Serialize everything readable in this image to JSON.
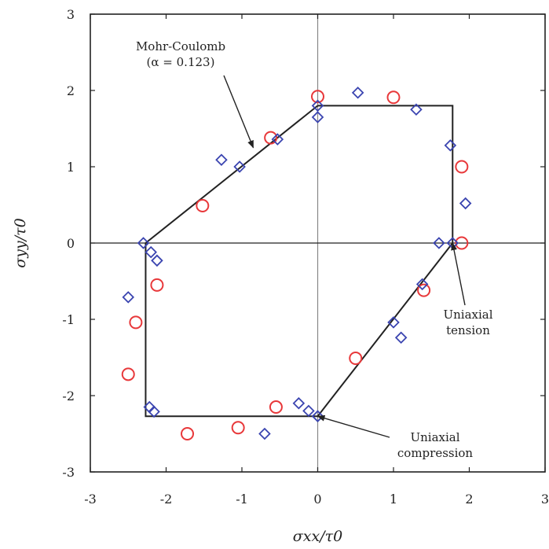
{
  "chart_data": {
    "type": "scatter",
    "title": "",
    "xlabel": "σxx/τ0",
    "ylabel": "σyy/τ0",
    "xlim": [
      -3,
      3
    ],
    "ylim": [
      -3,
      3
    ],
    "xticks": [
      -3,
      -2,
      -1,
      0,
      1,
      2,
      3
    ],
    "yticks": [
      -3,
      -2,
      -1,
      0,
      1,
      2,
      3
    ],
    "xtick_labels": [
      "-3",
      "-2",
      "-1",
      "0",
      "1",
      "2",
      "3"
    ],
    "ytick_labels": [
      "-3",
      "-2",
      "-1",
      "0",
      "1",
      "2",
      "3"
    ],
    "grid": false,
    "zero_lines": true,
    "series": [
      {
        "marker": "circle",
        "color": "#e8383a",
        "x": [
          0.0,
          1.0,
          1.9,
          1.9,
          -0.62,
          -1.52,
          -2.12,
          -2.4,
          -2.5,
          -1.72,
          -1.05,
          -0.55,
          0.5,
          1.4
        ],
        "y": [
          1.92,
          1.91,
          1.0,
          0.0,
          1.38,
          0.49,
          -0.55,
          -1.04,
          -1.72,
          -2.5,
          -2.42,
          -2.15,
          -1.51,
          -0.62
        ]
      },
      {
        "marker": "diamond",
        "color": "#3a44b0",
        "x": [
          0.0,
          0.0,
          0.53,
          1.3,
          1.75,
          1.95,
          1.6,
          1.78,
          -0.53,
          -1.03,
          -1.27,
          -2.3,
          -2.2,
          -2.12,
          -2.5,
          -2.22,
          -2.16,
          -0.7,
          -0.25,
          -0.12,
          0.0,
          1.0,
          1.1,
          1.38
        ],
        "y": [
          1.8,
          1.65,
          1.97,
          1.75,
          1.28,
          0.52,
          0.0,
          0.0,
          1.36,
          1.0,
          1.09,
          0.0,
          -0.12,
          -0.23,
          -0.71,
          -2.15,
          -2.21,
          -2.5,
          -2.1,
          -2.2,
          -2.27,
          -1.04,
          -1.24,
          -0.54
        ]
      }
    ],
    "criterion_line": {
      "name": "Mohr-Coulomb",
      "x": [
        0.0,
        1.78,
        1.78,
        0.0,
        -2.27,
        -2.27,
        0.0
      ],
      "y": [
        1.8,
        1.8,
        0.0,
        -2.27,
        -2.27,
        0.0,
        1.8
      ]
    },
    "annotations": [
      {
        "lines": [
          "Mohr-Coulomb",
          "(α = 0.123)"
        ],
        "target": [
          -0.85,
          1.25
        ]
      },
      {
        "lines": [
          "Uniaxial",
          "tension"
        ],
        "target": [
          1.78,
          0.0
        ]
      },
      {
        "lines": [
          "Uniaxial",
          "compression"
        ],
        "target": [
          0.0,
          -2.27
        ]
      }
    ]
  }
}
